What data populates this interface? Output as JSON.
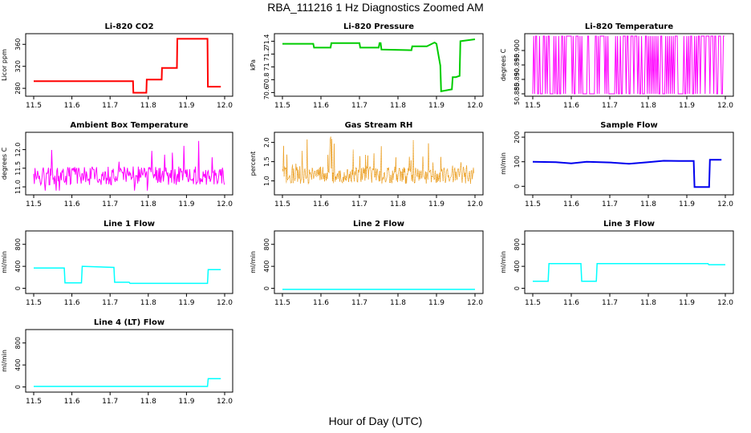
{
  "page": {
    "title": "RBA_111216  1 Hz Diagnostics Zoomed AM",
    "xlabel": "Hour of Day (UTC)"
  },
  "chart_data": [
    {
      "type": "line",
      "title": "Li-820 CO2",
      "ylabel": "Licor ppm",
      "color": "#ff0000",
      "xlim": [
        11.5,
        12.0
      ],
      "ylim": [
        270,
        375
      ],
      "xticks": [
        "11.5",
        "11.6",
        "11.7",
        "11.8",
        "11.9",
        "12.0"
      ],
      "yticks": [
        280,
        320,
        360
      ],
      "series": [
        {
          "x": [
            11.5,
            11.76,
            11.761,
            11.795,
            11.796,
            11.835,
            11.836,
            11.875,
            11.876,
            11.955,
            11.956,
            11.99
          ],
          "y": [
            293,
            293,
            272,
            272,
            296,
            296,
            317,
            317,
            370,
            370,
            283,
            283
          ]
        }
      ]
    },
    {
      "type": "line",
      "title": "Li-820 Pressure",
      "ylabel": "kPa",
      "color": "#00cc00",
      "xlim": [
        11.5,
        12.0
      ],
      "ylim": [
        70.58,
        71.48
      ],
      "xticks": [
        "11.5",
        "11.6",
        "11.7",
        "11.8",
        "11.9",
        "12.0"
      ],
      "yticks": [
        70.6,
        70.8,
        71.0,
        71.2,
        71.4
      ],
      "series": [
        {
          "x": [
            11.5,
            11.58,
            11.582,
            11.625,
            11.627,
            11.7,
            11.702,
            11.75,
            11.752,
            11.755,
            11.757,
            11.835,
            11.837,
            11.875,
            11.895,
            11.9,
            11.91,
            11.912,
            11.94,
            11.942,
            11.95,
            11.955,
            11.96,
            11.962,
            12.0
          ],
          "y": [
            71.36,
            71.36,
            71.3,
            71.3,
            71.37,
            71.37,
            71.3,
            71.3,
            71.37,
            71.37,
            71.27,
            71.26,
            71.32,
            71.32,
            71.38,
            71.36,
            71.02,
            70.62,
            70.65,
            70.84,
            70.84,
            70.85,
            70.86,
            71.4,
            71.43
          ]
        }
      ]
    },
    {
      "type": "line",
      "title": "Li-820 Temperature",
      "ylabel": "degrees C",
      "color": "#ff00ff",
      "xlim": [
        11.5,
        12.0
      ],
      "ylim": [
        50.885,
        50.905
      ],
      "xticks": [
        "11.5",
        "11.6",
        "11.7",
        "11.8",
        "11.9",
        "12.0"
      ],
      "yticks": [
        "50.885",
        "50.890",
        "50.895",
        "50.900"
      ],
      "series": [
        {
          "name": "",
          "pattern": "alternating 50.885 / 50.905"
        }
      ]
    },
    {
      "type": "line",
      "title": "Ambient Box Temperature",
      "ylabel": "degrees C",
      "color": "#ff00ff",
      "xlim": [
        11.5,
        12.0
      ],
      "ylim": [
        10.85,
        12.4
      ],
      "xticks": [
        "11.5",
        "11.6",
        "11.7",
        "11.8",
        "11.9",
        "12.0"
      ],
      "yticks": [
        "11.0",
        "11.5",
        "12.0"
      ],
      "series": [
        {
          "pattern": "noisy band centred near 11.3"
        }
      ]
    },
    {
      "type": "line",
      "title": "Gas Stream RH",
      "ylabel": "percent",
      "color": "#e89000",
      "xlim": [
        11.5,
        12.0
      ],
      "ylim": [
        0.7,
        2.2
      ],
      "xticks": [
        "11.5",
        "11.6",
        "11.7",
        "11.8",
        "11.9",
        "12.0"
      ],
      "yticks": [
        "1.0",
        "1.5",
        "2.0"
      ],
      "series": [
        {
          "pattern": "noisy band between 0.8 and 2.1"
        }
      ]
    },
    {
      "type": "line",
      "title": "Sample Flow",
      "ylabel": "ml/min",
      "color": "#0000ee",
      "xlim": [
        11.5,
        12.0
      ],
      "ylim": [
        -25,
        210
      ],
      "xticks": [
        "11.5",
        "11.6",
        "11.7",
        "11.8",
        "11.9",
        "12.0"
      ],
      "yticks": [
        0,
        100,
        200
      ],
      "series": [
        {
          "x": [
            11.5,
            11.56,
            11.6,
            11.64,
            11.7,
            11.75,
            11.8,
            11.84,
            11.88,
            11.918,
            11.92,
            11.958,
            11.96,
            11.99
          ],
          "y": [
            100,
            98,
            93,
            100,
            97,
            92,
            98,
            104,
            103,
            103,
            -3,
            -3,
            108,
            108
          ]
        }
      ]
    },
    {
      "type": "line",
      "title": "Line 1 Flow",
      "ylabel": "ml/min",
      "color": "#00ffff",
      "xlim": [
        11.5,
        12.0
      ],
      "ylim": [
        -50,
        1000
      ],
      "xticks": [
        "11.5",
        "11.6",
        "11.7",
        "11.8",
        "11.9",
        "12.0"
      ],
      "yticks": [
        0,
        400,
        800
      ],
      "series": [
        {
          "x": [
            11.5,
            11.58,
            11.582,
            11.625,
            11.627,
            11.71,
            11.712,
            11.75,
            11.752,
            11.955,
            11.957,
            11.99
          ],
          "y": [
            370,
            370,
            100,
            100,
            400,
            380,
            110,
            110,
            90,
            90,
            340,
            340
          ]
        }
      ]
    },
    {
      "type": "line",
      "title": "Line 2 Flow",
      "ylabel": "ml/min",
      "color": "#00ffff",
      "xlim": [
        11.5,
        12.0
      ],
      "ylim": [
        -50,
        1000
      ],
      "xticks": [
        "11.5",
        "11.6",
        "11.7",
        "11.8",
        "11.9",
        "12.0"
      ],
      "yticks": [
        0,
        400,
        800
      ],
      "series": [
        {
          "x": [
            11.5,
            12.0
          ],
          "y": [
            -20,
            -20
          ]
        }
      ]
    },
    {
      "type": "line",
      "title": "Line 3 Flow",
      "ylabel": "ml/min",
      "color": "#00ffff",
      "xlim": [
        11.5,
        12.0
      ],
      "ylim": [
        -50,
        1000
      ],
      "xticks": [
        "11.5",
        "11.6",
        "11.7",
        "11.8",
        "11.9",
        "12.0"
      ],
      "yticks": [
        0,
        400,
        800
      ],
      "series": [
        {
          "x": [
            11.5,
            11.54,
            11.542,
            11.625,
            11.627,
            11.665,
            11.667,
            11.955,
            11.957,
            12.0
          ],
          "y": [
            130,
            130,
            450,
            450,
            130,
            130,
            450,
            450,
            430,
            430
          ]
        }
      ]
    },
    {
      "type": "line",
      "title": "Line 4 (LT) Flow",
      "ylabel": "ml/min",
      "color": "#00ffff",
      "xlim": [
        11.5,
        12.0
      ],
      "ylim": [
        -50,
        1000
      ],
      "xticks": [
        "11.5",
        "11.6",
        "11.7",
        "11.8",
        "11.9",
        "12.0"
      ],
      "yticks": [
        0,
        400,
        800
      ],
      "series": [
        {
          "x": [
            11.5,
            11.955,
            11.957,
            11.99
          ],
          "y": [
            10,
            10,
            150,
            150
          ]
        }
      ]
    }
  ]
}
